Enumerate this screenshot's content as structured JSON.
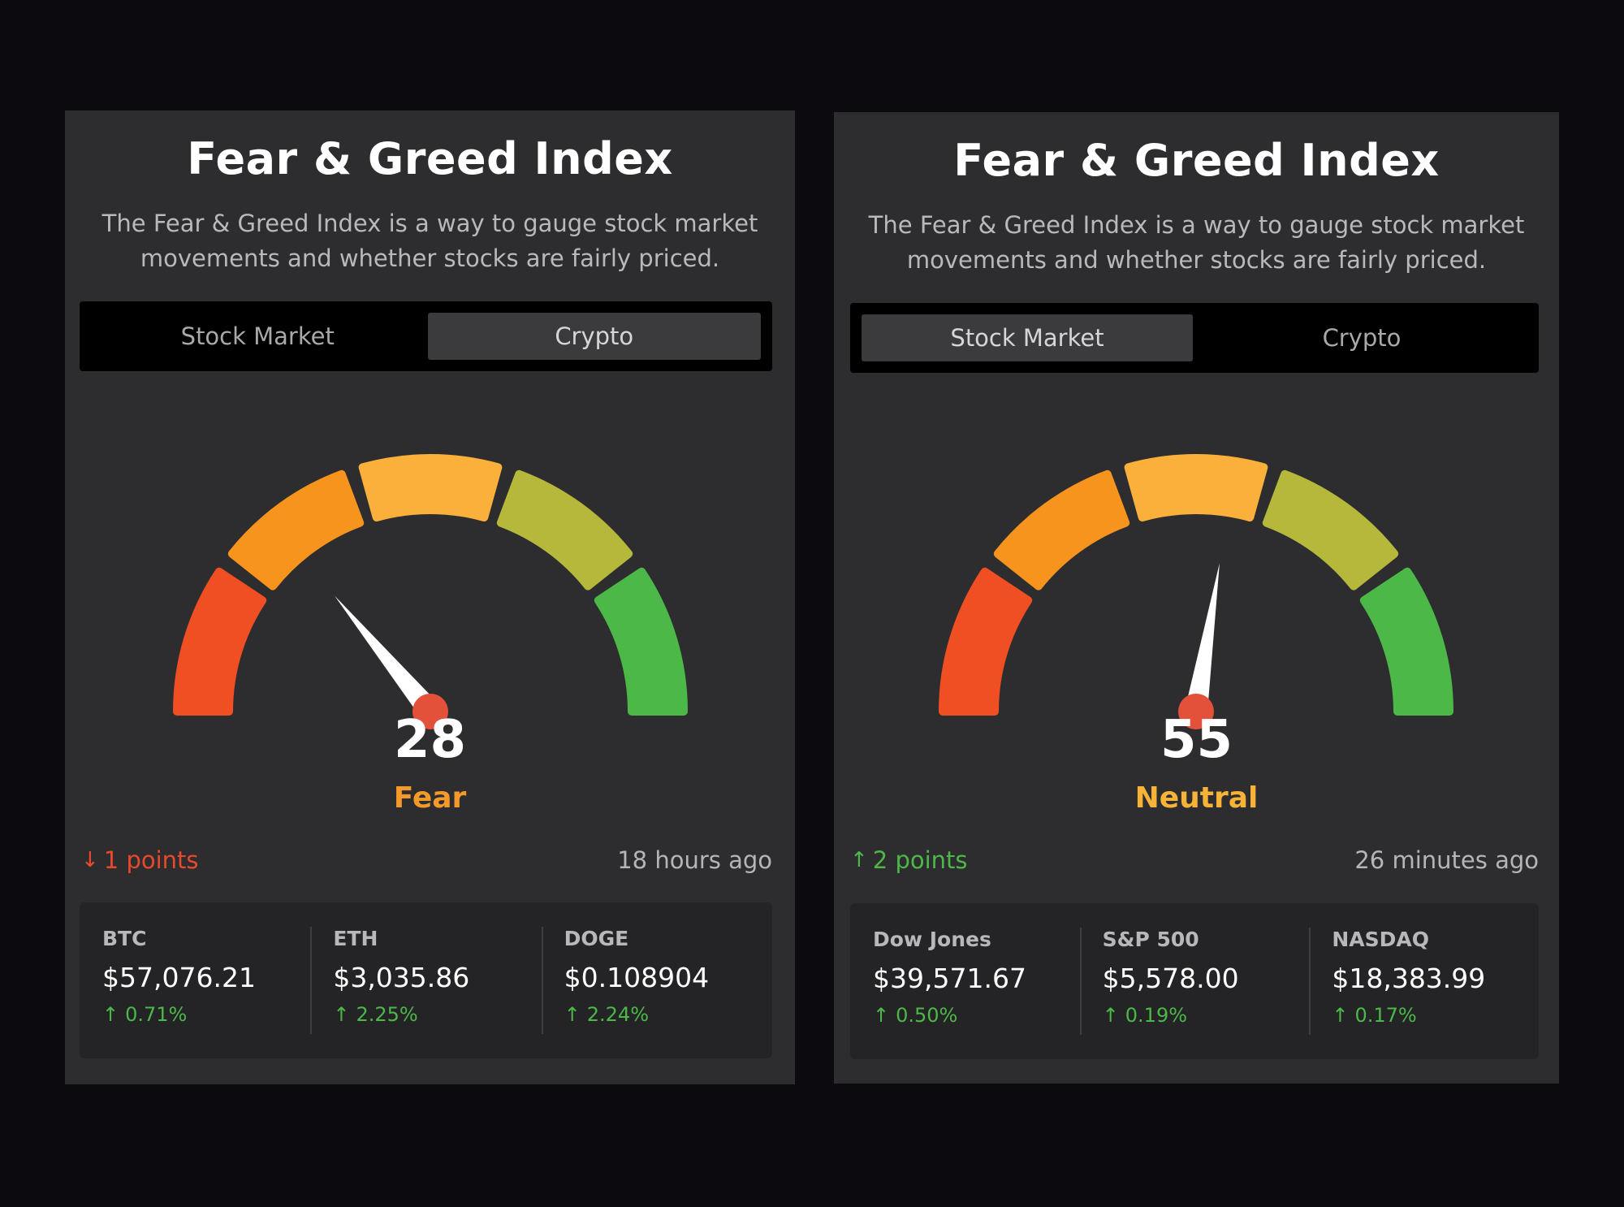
{
  "colors": {
    "page_bg": "#0d0a0f",
    "card_bg": "#2d2d2f",
    "up": "#4cb848",
    "down": "#e8492c",
    "fear": "#f39a2b",
    "neutral": "#f6b338",
    "segment_red": "#f04e23",
    "segment_orange": "#f7941d",
    "segment_yellow": "#fbb03b",
    "segment_olive": "#b5b83a",
    "segment_green": "#4cb848",
    "needle_pivot": "#e4513a"
  },
  "cards": [
    {
      "title": "Fear & Greed Index",
      "description": "The Fear & Greed Index is a way to gauge stock market movements and whether stocks are fairly priced.",
      "tabs": [
        {
          "label": "Stock Market",
          "active": false
        },
        {
          "label": "Crypto",
          "active": true
        }
      ],
      "score": "28",
      "score_value": 28,
      "sentiment": "Fear",
      "change": {
        "direction": "down",
        "arrow_icon": "arrow-down-icon",
        "label": "1 points"
      },
      "updated": "18 hours ago",
      "tickers": [
        {
          "name": "BTC",
          "price": "$57,076.21",
          "change": "0.71%",
          "direction": "up",
          "icon": "arrow-up-icon"
        },
        {
          "name": "ETH",
          "price": "$3,035.86",
          "change": "2.25%",
          "direction": "up",
          "icon": "arrow-up-icon"
        },
        {
          "name": "DOGE",
          "price": "$0.108904",
          "change": "2.24%",
          "direction": "up",
          "icon": "arrow-up-icon"
        }
      ]
    },
    {
      "title": "Fear & Greed Index",
      "description": "The Fear & Greed Index is a way to gauge stock market movements and whether stocks are fairly priced.",
      "tabs": [
        {
          "label": "Stock Market",
          "active": true
        },
        {
          "label": "Crypto",
          "active": false
        }
      ],
      "score": "55",
      "score_value": 55,
      "sentiment": "Neutral",
      "change": {
        "direction": "up",
        "arrow_icon": "arrow-up-icon",
        "label": "2 points"
      },
      "updated": "26 minutes ago",
      "tickers": [
        {
          "name": "Dow Jones",
          "price": "$39,571.67",
          "change": "0.50%",
          "direction": "up",
          "icon": "arrow-up-icon"
        },
        {
          "name": "S&P 500",
          "price": "$5,578.00",
          "change": "0.19%",
          "direction": "up",
          "icon": "arrow-up-icon"
        },
        {
          "name": "NASDAQ",
          "price": "$18,383.99",
          "change": "0.17%",
          "direction": "up",
          "icon": "arrow-up-icon"
        }
      ]
    }
  ]
}
